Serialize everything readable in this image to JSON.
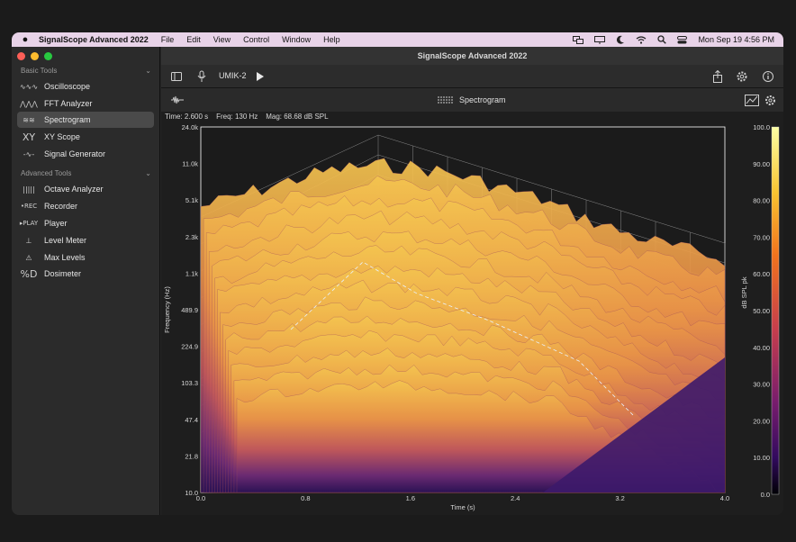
{
  "menubar": {
    "app_name": "SignalScope Advanced 2022",
    "menus": [
      "File",
      "Edit",
      "View",
      "Control",
      "Window",
      "Help"
    ],
    "datetime": "Mon Sep 19  4:56 PM"
  },
  "window": {
    "title": "SignalScope Advanced 2022"
  },
  "sidebar": {
    "basic_header": "Basic Tools",
    "basic_items": [
      {
        "icon": "∿∿∿",
        "label": "Oscilloscope"
      },
      {
        "icon": "⋀⋀⋀",
        "label": "FFT Analyzer"
      },
      {
        "icon": "≋≋",
        "label": "Spectrogram"
      },
      {
        "icon": "XY",
        "label": "XY Scope"
      },
      {
        "icon": "-∿-",
        "label": "Signal Generator"
      }
    ],
    "advanced_header": "Advanced Tools",
    "advanced_items": [
      {
        "icon": "|||||",
        "label": "Octave Analyzer"
      },
      {
        "icon": "•REC",
        "label": "Recorder"
      },
      {
        "icon": "▸PLAY",
        "label": "Player"
      },
      {
        "icon": "⊥",
        "label": "Level Meter"
      },
      {
        "icon": "⚠",
        "label": "Max Levels"
      },
      {
        "icon": "%D",
        "label": "Dosimeter"
      }
    ]
  },
  "toolbar": {
    "device": "UMIK-2"
  },
  "tool": {
    "title": "Spectrogram"
  },
  "readout": {
    "time": "Time: 2.600 s",
    "freq": "Freq: 130 Hz",
    "mag": "Mag: 68.68 dB SPL"
  },
  "colors": {
    "accent_menubar": "#e8d3e8",
    "surface_high": "#f2b84b",
    "surface_mid": "#c05a58",
    "surface_low": "#3d1a6a"
  },
  "chart_data": {
    "type": "heatmap",
    "title": "",
    "xlabel": "Time (s)",
    "ylabel": "Frequency (Hz)",
    "zlabel": "dB SPL pk",
    "x_ticks": [
      "0.0",
      "0.8",
      "1.6",
      "2.4",
      "3.2",
      "4.0"
    ],
    "xlim": [
      0.0,
      4.0
    ],
    "y_ticks": [
      "24.0k",
      "11.0k",
      "5.1k",
      "2.3k",
      "1.1k",
      "489.9",
      "224.9",
      "103.3",
      "47.4",
      "21.8",
      "10.0"
    ],
    "ylim": [
      10.0,
      24000
    ],
    "y_scale": "log",
    "colorbar_ticks": [
      "100.0",
      "90.00",
      "80.00",
      "70.00",
      "60.00",
      "50.00",
      "40.00",
      "30.00",
      "20.00",
      "10.00",
      "0.0"
    ],
    "zlim": [
      0.0,
      100.0
    ],
    "grid": true
  }
}
